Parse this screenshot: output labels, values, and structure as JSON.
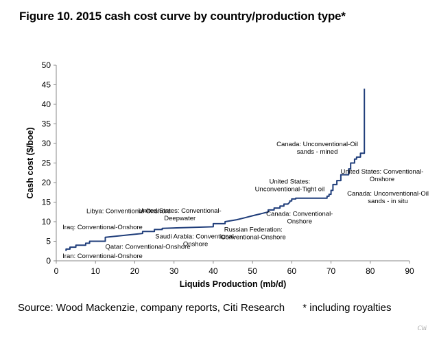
{
  "figure_title": "Figure 10. 2015 cash cost curve by country/production type*",
  "source": {
    "text": "Source: Wood Mackenzie, company reports, Citi Research",
    "note": "* including royalties"
  },
  "watermark": "Citi",
  "colors": {
    "curve": "#1f3d7a",
    "axis": "#888888"
  },
  "chart_data": {
    "type": "line",
    "title": "2015 cash cost curve by country/production type",
    "xlabel": "Liquids Production (mb/d)",
    "ylabel": "Cash cost ($/boe)",
    "xlim": [
      0,
      90
    ],
    "ylim": [
      0,
      50
    ],
    "xticks": [
      0,
      10,
      20,
      30,
      40,
      50,
      60,
      70,
      80,
      90
    ],
    "yticks": [
      0,
      5,
      10,
      15,
      20,
      25,
      30,
      35,
      40,
      45,
      50
    ],
    "grid": false,
    "series": [
      {
        "name": "",
        "x": [
          2.5,
          2.5,
          3.5,
          3.5,
          5,
          5,
          7.5,
          7.5,
          8.5,
          8.5,
          12.5,
          12.5,
          22,
          22,
          25,
          25,
          27,
          27,
          40,
          40,
          43,
          43,
          46,
          48,
          50,
          52,
          54,
          54,
          55.5,
          55.5,
          57,
          57,
          58,
          58,
          59,
          59.5,
          59.5,
          60,
          60,
          61,
          61,
          69,
          69,
          69.5,
          69.5,
          70,
          70,
          70.5,
          70.5,
          71.5,
          71.5,
          72.5,
          72.5,
          74.5,
          74.5,
          75,
          75,
          76,
          76,
          76.5,
          76.5,
          77.5,
          77.5,
          78.5,
          78.5
        ],
        "y": [
          2.5,
          3,
          3,
          3.5,
          3.5,
          4,
          4,
          4.5,
          4.5,
          5,
          5,
          6,
          7,
          7.5,
          7.5,
          8,
          8,
          8.3,
          8.7,
          9.5,
          9.5,
          10,
          10.5,
          11,
          11.5,
          12,
          12.5,
          13,
          13,
          13.5,
          13.5,
          14,
          14,
          14.5,
          14.5,
          15,
          15.3,
          15.3,
          15.8,
          15.8,
          16,
          16,
          16.5,
          16.5,
          17,
          17,
          18,
          18,
          19.5,
          19.5,
          20.5,
          20.5,
          22,
          22,
          23.5,
          23.5,
          25,
          25,
          26,
          26,
          26.5,
          26.5,
          27.5,
          27.5,
          44
        ]
      }
    ],
    "annotations": [
      {
        "lines": [
          "Iran: Conventional-Onshore"
        ],
        "x": 1.6,
        "y": 0.7,
        "anchor": "start"
      },
      {
        "lines": [
          "Qatar: Conventional-Onshore"
        ],
        "x": 12.5,
        "y": 3.1,
        "anchor": "start"
      },
      {
        "lines": [
          "Iraq: Conventional-Onshore"
        ],
        "x": 1.6,
        "y": 8.1,
        "anchor": "start"
      },
      {
        "lines": [
          "Libya: Conventional-Onshore"
        ],
        "x": 7.7,
        "y": 12.2,
        "anchor": "start"
      },
      {
        "lines": [
          "United States: Conventional-",
          "Deepwater"
        ],
        "x": 31.5,
        "y": 12.3,
        "anchor": "middle"
      },
      {
        "lines": [
          "Saudi Arabia: Conventional-",
          "Onshore"
        ],
        "x": 35.5,
        "y": 5.7,
        "anchor": "middle"
      },
      {
        "lines": [
          "Russian Federation:",
          "Conventional-Onshore"
        ],
        "x": 50.2,
        "y": 7.5,
        "anchor": "middle"
      },
      {
        "lines": [
          "Canada: Conventional-",
          "Onshore"
        ],
        "x": 62,
        "y": 11.5,
        "anchor": "middle"
      },
      {
        "lines": [
          "United States:",
          "Unconventional-Tight oil"
        ],
        "x": 59.5,
        "y": 19.7,
        "anchor": "middle"
      },
      {
        "lines": [
          "Canada: Unconventional-Oil",
          "sands - mined"
        ],
        "x": 66.5,
        "y": 29.3,
        "anchor": "middle"
      },
      {
        "lines": [
          "United States: Conventional-",
          "Onshore"
        ],
        "x": 83,
        "y": 22.3,
        "anchor": "middle"
      },
      {
        "lines": [
          "Canada: Unconventional-Oil",
          "sands - in situ"
        ],
        "x": 84.5,
        "y": 16.7,
        "anchor": "middle"
      }
    ]
  }
}
